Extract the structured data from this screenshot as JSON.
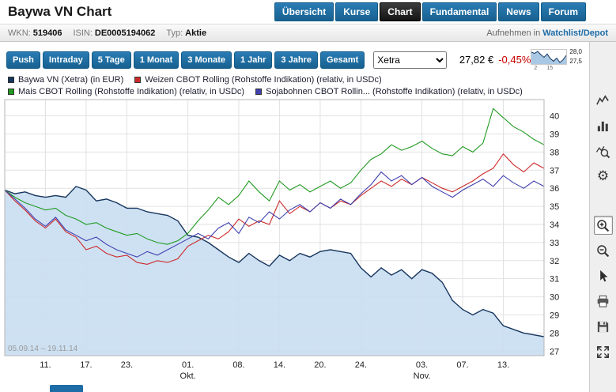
{
  "header": {
    "title": "Baywa VN Chart",
    "nav": [
      {
        "label": "Übersicht",
        "active": false
      },
      {
        "label": "Kurse",
        "active": false
      },
      {
        "label": "Chart",
        "active": true
      },
      {
        "label": "Fundamental",
        "active": false
      },
      {
        "label": "News",
        "active": false
      },
      {
        "label": "Forum",
        "active": false
      }
    ]
  },
  "infobar": {
    "wkn_label": "WKN:",
    "wkn": "519406",
    "isin_label": "ISIN:",
    "isin": "DE0005194062",
    "typ_label": "Typ:",
    "typ": "Aktie",
    "watchlist_prefix": "Aufnehmen in ",
    "watchlist_link": "Watchlist/Depot"
  },
  "toolbar": {
    "range_buttons": [
      "Push",
      "Intraday",
      "5 Tage",
      "1 Monat",
      "3 Monate",
      "1 Jahr",
      "3 Jahre",
      "Gesamt"
    ],
    "exchange_select": {
      "value": "Xetra",
      "options": [
        "Xetra"
      ]
    },
    "price": "27,82 €",
    "change": "-0,45%",
    "change_color": "#cc0000",
    "sparkline": {
      "high_label": "28,0",
      "low_label": "27,5",
      "x_labels": [
        "2",
        "15"
      ],
      "values": [
        27.95,
        27.9,
        27.98,
        27.85,
        27.75,
        27.88,
        27.7,
        27.6,
        27.72,
        27.55,
        27.65,
        27.82
      ]
    }
  },
  "sidebar": {
    "tools": [
      {
        "name": "chart-type-line",
        "icon": "line-chart",
        "active": false,
        "gap": false
      },
      {
        "name": "chart-type-bar",
        "icon": "bar-chart",
        "active": false,
        "gap": false
      },
      {
        "name": "indicators",
        "icon": "chart-magnifier",
        "active": false,
        "gap": false
      },
      {
        "name": "settings",
        "icon": "gear",
        "active": false,
        "gap": false
      },
      {
        "name": "zoom-in",
        "icon": "zoom-in",
        "active": true,
        "gap": true
      },
      {
        "name": "zoom-out",
        "icon": "zoom-out",
        "active": false,
        "gap": false
      },
      {
        "name": "pointer",
        "icon": "cursor-arrow",
        "active": false,
        "gap": false
      },
      {
        "name": "print",
        "icon": "printer",
        "active": false,
        "gap": false
      },
      {
        "name": "save",
        "icon": "floppy-disk",
        "active": false,
        "gap": false
      },
      {
        "name": "fullscreen",
        "icon": "expand-arrows",
        "active": false,
        "gap": false
      }
    ]
  },
  "chart_data": {
    "type": "line",
    "title": "Baywa VN Chart",
    "x_range_label": "05.09.14 – 19.11.14",
    "grid": true,
    "y_axis_side": "right",
    "legend_position": "top",
    "ylim": [
      26.75,
      40.9
    ],
    "y_ticks": [
      27,
      28,
      29,
      30,
      31,
      32,
      33,
      34,
      35,
      36,
      37,
      38,
      39,
      40
    ],
    "x_ticks": [
      {
        "label": "11.",
        "index": 4
      },
      {
        "label": "17.",
        "index": 8
      },
      {
        "label": "23.",
        "index": 12
      },
      {
        "label": "01.",
        "index": 18,
        "sub": "Okt."
      },
      {
        "label": "08.",
        "index": 23
      },
      {
        "label": "14.",
        "index": 27
      },
      {
        "label": "20.",
        "index": 31
      },
      {
        "label": "24.",
        "index": 35
      },
      {
        "label": "03.",
        "index": 41,
        "sub": "Nov."
      },
      {
        "label": "07.",
        "index": 45
      },
      {
        "label": "13.",
        "index": 49
      }
    ],
    "series": [
      {
        "id": "baywa-vn",
        "name": "Baywa VN (Xetra) (in EUR)",
        "color": "#17365d",
        "fill": "#c9def2",
        "style": "area",
        "values": [
          35.9,
          35.7,
          35.8,
          35.6,
          35.5,
          35.6,
          35.5,
          36.1,
          35.9,
          35.3,
          35.4,
          35.2,
          34.9,
          34.9,
          34.7,
          34.6,
          34.5,
          34.2,
          33.4,
          33.3,
          33.0,
          32.6,
          32.2,
          31.9,
          32.4,
          32.0,
          31.7,
          32.3,
          32.0,
          32.4,
          32.2,
          32.5,
          32.6,
          32.5,
          32.4,
          31.6,
          31.1,
          31.6,
          31.2,
          31.5,
          31.0,
          31.5,
          31.3,
          30.8,
          29.8,
          29.3,
          29.0,
          29.3,
          29.1,
          28.4,
          28.2,
          28.0,
          27.9,
          27.8
        ]
      },
      {
        "id": "weizen-cbot",
        "name": "Weizen CBOT Rolling (Rohstoffe Indikation) (relativ, in USDc)",
        "color": "#cc2a2a",
        "style": "line",
        "values": [
          35.9,
          35.3,
          34.8,
          34.2,
          33.8,
          34.3,
          33.6,
          33.3,
          32.6,
          32.8,
          32.4,
          32.2,
          32.3,
          31.9,
          31.8,
          32.0,
          31.9,
          32.1,
          32.8,
          33.1,
          33.4,
          33.2,
          33.6,
          34.3,
          33.9,
          34.2,
          34.0,
          35.3,
          34.6,
          35.0,
          34.7,
          35.2,
          34.9,
          35.3,
          35.1,
          35.6,
          36.0,
          36.4,
          36.1,
          36.5,
          36.2,
          36.6,
          36.3,
          36.0,
          35.8,
          36.1,
          36.4,
          36.8,
          37.1,
          37.9,
          37.3,
          36.9,
          37.4,
          37.1
        ]
      },
      {
        "id": "mais-cbot",
        "name": "Mais CBOT Rolling (Rohstoffe Indikation) (relativ, in USDc)",
        "color": "#1f9a1f",
        "style": "line",
        "values": [
          35.9,
          35.5,
          35.2,
          35.0,
          34.8,
          34.9,
          34.5,
          34.3,
          34.0,
          34.1,
          33.8,
          33.6,
          33.4,
          33.5,
          33.2,
          33.0,
          32.9,
          33.1,
          33.5,
          34.2,
          34.8,
          35.5,
          35.1,
          35.6,
          36.4,
          35.8,
          35.3,
          36.4,
          35.9,
          36.2,
          35.8,
          36.1,
          36.4,
          36.0,
          36.3,
          37.0,
          37.6,
          37.9,
          38.4,
          38.1,
          38.3,
          38.6,
          38.2,
          37.9,
          37.8,
          38.3,
          38.0,
          38.5,
          40.4,
          39.9,
          39.4,
          39.1,
          38.7,
          38.4
        ]
      },
      {
        "id": "sojabohnen-cbot",
        "name": "Sojabohnen CBOT Rollin... (Rohstoffe Indikation) (relativ, in USDc)",
        "color": "#4040b0",
        "style": "line",
        "values": [
          35.9,
          35.4,
          34.9,
          34.3,
          33.9,
          34.4,
          33.7,
          33.4,
          33.1,
          33.3,
          32.9,
          32.6,
          32.4,
          32.2,
          32.5,
          32.3,
          32.6,
          32.9,
          33.2,
          33.5,
          33.2,
          33.8,
          34.1,
          33.5,
          34.4,
          34.1,
          34.7,
          34.3,
          34.8,
          35.1,
          34.7,
          35.2,
          34.9,
          35.4,
          35.1,
          35.7,
          36.2,
          36.9,
          36.4,
          36.7,
          36.2,
          36.6,
          36.1,
          35.8,
          35.5,
          35.9,
          36.2,
          36.5,
          36.1,
          36.7,
          36.3,
          36.0,
          36.4,
          36.1
        ]
      }
    ]
  }
}
